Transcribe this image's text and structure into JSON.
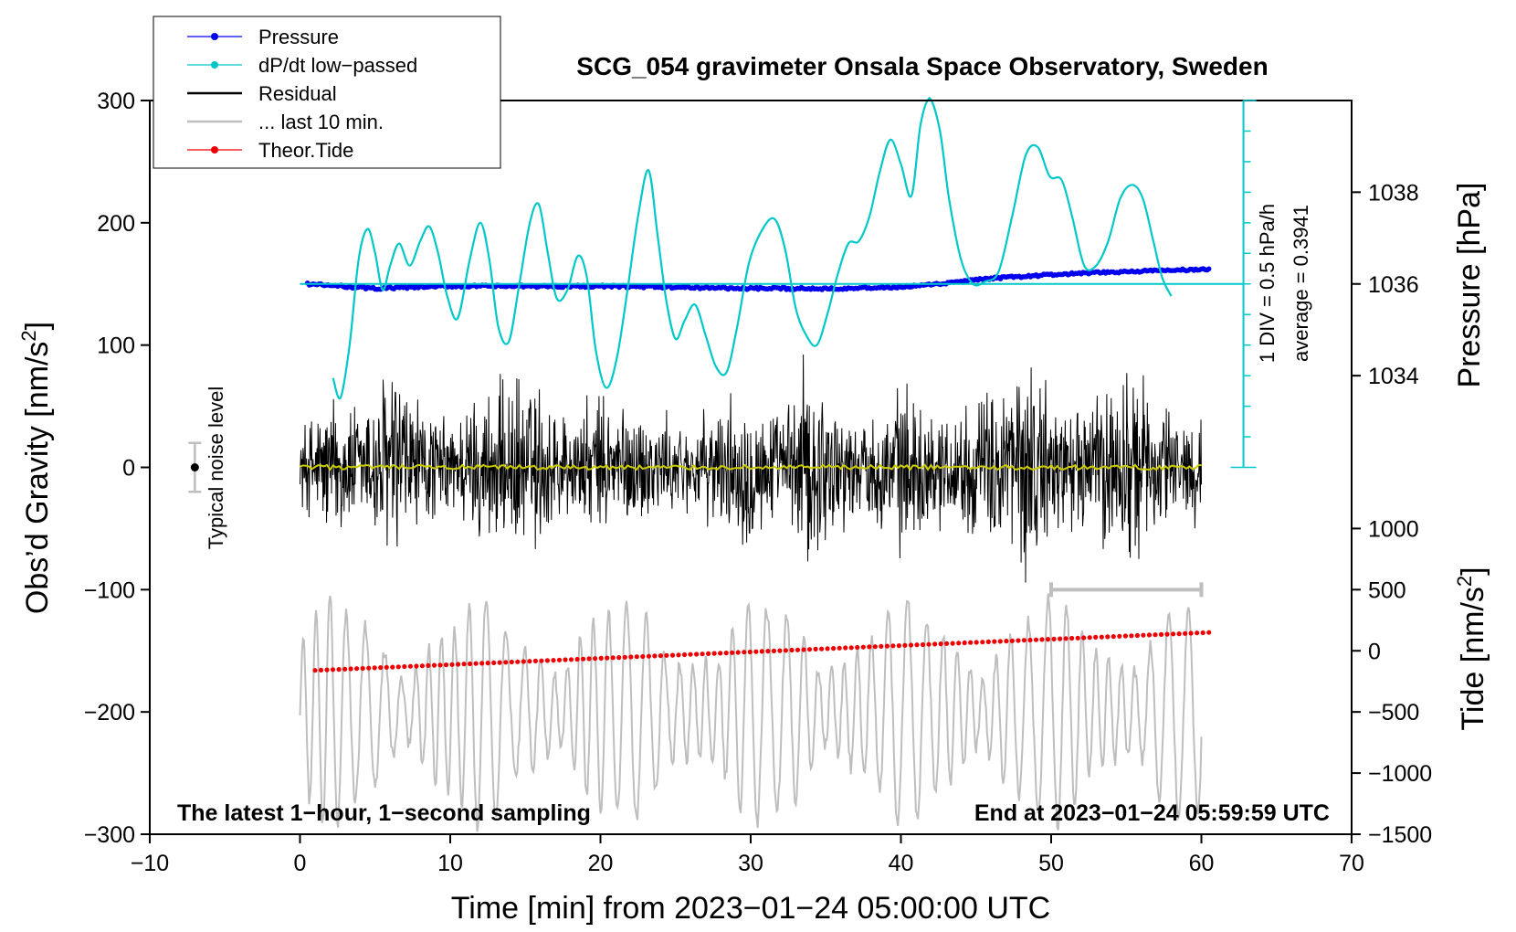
{
  "chart_data": {
    "type": "line",
    "title": "SCG_054 gravimeter Onsala Space Observatory, Sweden",
    "xlabel": "Time [min] from 2023−01−24 05:00:00 UTC",
    "ylabel_left_main": "Obs’d Gravity [nm/s",
    "ylabel_left_sup": "2",
    "ylabel_left_close": "]",
    "ylabel_right_top": "Pressure [hPa]",
    "ylabel_right_bottom_main": "Tide [nm/s",
    "ylabel_right_bottom_sup": "2",
    "ylabel_right_bottom_close": "]",
    "xlim": [
      -10,
      70
    ],
    "ylim_left": [
      -300,
      300
    ],
    "x_ticks": [
      {
        "v": -10,
        "label": "−10"
      },
      {
        "v": 0,
        "label": "0"
      },
      {
        "v": 10,
        "label": "10"
      },
      {
        "v": 20,
        "label": "20"
      },
      {
        "v": 30,
        "label": "30"
      },
      {
        "v": 40,
        "label": "40"
      },
      {
        "v": 50,
        "label": "50"
      },
      {
        "v": 60,
        "label": "60"
      },
      {
        "v": 70,
        "label": "70"
      }
    ],
    "y_left_ticks": [
      {
        "v": 300,
        "label": "300"
      },
      {
        "v": 200,
        "label": "200"
      },
      {
        "v": 100,
        "label": "100"
      },
      {
        "v": 0,
        "label": "0"
      },
      {
        "v": -100,
        "label": "−100"
      },
      {
        "v": -200,
        "label": "−200"
      },
      {
        "v": -300,
        "label": "−300"
      }
    ],
    "pressure_axis": {
      "ticks": [
        {
          "v": 1038,
          "label": "1038"
        },
        {
          "v": 1036,
          "label": "1036"
        },
        {
          "v": 1034,
          "label": "1034"
        }
      ],
      "ref_value": 1036,
      "ref_gravity": 150,
      "hpa_per_gravity_unit": 0.02666
    },
    "tide_axis": {
      "ticks": [
        {
          "v": 1000,
          "label": "1000"
        },
        {
          "v": 500,
          "label": "500"
        },
        {
          "v": 0,
          "label": "0"
        },
        {
          "v": -500,
          "label": "−500"
        },
        {
          "v": -1000,
          "label": "−1000"
        },
        {
          "v": -1500,
          "label": "−1500"
        }
      ],
      "ref_value": 0,
      "ref_gravity": -150,
      "nm_per_gravity_unit": 10
    },
    "legend": [
      {
        "label": "Pressure",
        "color": "#0000ee",
        "marker": true
      },
      {
        "label": "dP/dt low−passed",
        "color": "#00c8c8",
        "marker": true
      },
      {
        "label": "Residual",
        "color": "#000000",
        "marker": false
      },
      {
        "label": "... last 10 min.",
        "color": "#bebebe",
        "marker": false
      },
      {
        "label": "Theor.Tide",
        "color": "#ee0000",
        "marker": true
      }
    ],
    "dpdt_scale": {
      "label_div": "1 DIV = 0.5 hPa/h",
      "label_avg": "average = 0.3941",
      "x": 62.8,
      "ymin": 0,
      "ymax": 300,
      "baseline": 150
    },
    "noise_level": {
      "label": "Typical noise level",
      "x": -7,
      "center": 0,
      "half_range": 20
    },
    "last10_bar": {
      "x_start": 50,
      "x_end": 60,
      "y": -100
    },
    "footer_left": "The latest 1−hour, 1−second sampling",
    "footer_right": "End at 2023−01−24 05:59:59 UTC",
    "series": [
      {
        "name": "dP/dt low-passed",
        "x": [
          2.2,
          2.7,
          3.3,
          3.9,
          4.5,
          5.0,
          5.5,
          6.0,
          6.6,
          7.3,
          8.0,
          8.6,
          9.2,
          9.8,
          10.5,
          11.3,
          12.0,
          12.6,
          13.2,
          13.9,
          14.6,
          15.3,
          15.9,
          16.5,
          17.1,
          17.8,
          18.5,
          19.1,
          19.7,
          20.4,
          21.1,
          21.8,
          22.5,
          23.2,
          23.8,
          24.4,
          25.0,
          25.6,
          26.3,
          27.0,
          27.7,
          28.4,
          29.1,
          29.9,
          30.8,
          31.6,
          32.3,
          33.0,
          33.7,
          34.4,
          35.1,
          35.8,
          36.5,
          37.2,
          37.9,
          38.6,
          39.3,
          40.0,
          40.7,
          41.3,
          41.9,
          42.6,
          43.2,
          44.0,
          44.8,
          45.6,
          46.5,
          47.4,
          48.3,
          49.1,
          49.9,
          50.7,
          51.4,
          52.2,
          53.0,
          53.8,
          54.6,
          55.4,
          56.1,
          56.8,
          57.4,
          58.0
        ],
        "y": [
          73,
          57,
          100,
          170,
          195,
          175,
          145,
          165,
          183,
          165,
          185,
          197,
          175,
          140,
          122,
          170,
          200,
          170,
          115,
          103,
          150,
          200,
          215,
          175,
          138,
          145,
          173,
          155,
          95,
          65,
          90,
          145,
          205,
          243,
          190,
          135,
          105,
          120,
          133,
          108,
          82,
          78,
          115,
          168,
          195,
          203,
          178,
          130,
          108,
          100,
          125,
          158,
          183,
          185,
          205,
          242,
          268,
          248,
          222,
          280,
          302,
          275,
          220,
          170,
          150,
          152,
          160,
          205,
          255,
          262,
          238,
          235,
          205,
          165,
          165,
          185,
          220,
          231,
          220,
          185,
          155,
          140
        ]
      },
      {
        "name": "Pressure",
        "unit": "hPa",
        "x": [
          0.5,
          5,
          10,
          15,
          20,
          25,
          30,
          35,
          40,
          42,
          44,
          46,
          48,
          50,
          55,
          60.5
        ],
        "y": [
          1036.0,
          1035.9,
          1035.95,
          1035.95,
          1035.95,
          1035.93,
          1035.9,
          1035.9,
          1035.93,
          1035.98,
          1036.05,
          1036.12,
          1036.16,
          1036.2,
          1036.27,
          1036.32
        ]
      },
      {
        "name": "Theor.Tide",
        "unit": "nm/s2",
        "x": [
          1,
          60.5
        ],
        "y": [
          -160,
          150
        ]
      },
      {
        "name": "Residual",
        "description": "1-second sampled residual gravity, envelope ~±100 nm/s2 around 0",
        "x_range": [
          0,
          60
        ],
        "envelope": [
          [
            0,
            40
          ],
          [
            2,
            70
          ],
          [
            4,
            60
          ],
          [
            6.3,
            105
          ],
          [
            8,
            60
          ],
          [
            10,
            45
          ],
          [
            12,
            75
          ],
          [
            15,
            85
          ],
          [
            16,
            80
          ],
          [
            18,
            50
          ],
          [
            20,
            70
          ],
          [
            22,
            60
          ],
          [
            24,
            50
          ],
          [
            26,
            40
          ],
          [
            28,
            60
          ],
          [
            30,
            75
          ],
          [
            32,
            45
          ],
          [
            33.5,
            100
          ],
          [
            35,
            80
          ],
          [
            37,
            40
          ],
          [
            39,
            60
          ],
          [
            40,
            80
          ],
          [
            42,
            55
          ],
          [
            44,
            55
          ],
          [
            46,
            75
          ],
          [
            48.5,
            110
          ],
          [
            50,
            70
          ],
          [
            52,
            55
          ],
          [
            54,
            90
          ],
          [
            55.5,
            100
          ],
          [
            57,
            60
          ],
          [
            60,
            50
          ]
        ]
      },
      {
        "name": "... last 10 min.",
        "description": "last 10 minutes of residual, stretched over full time axis and offset to -200",
        "offset": -200,
        "x_range": [
          0,
          60
        ]
      },
      {
        "name": "smoothed residual",
        "color": "#cccc00",
        "x_range": [
          0,
          60
        ],
        "y_mean": 0
      }
    ]
  }
}
